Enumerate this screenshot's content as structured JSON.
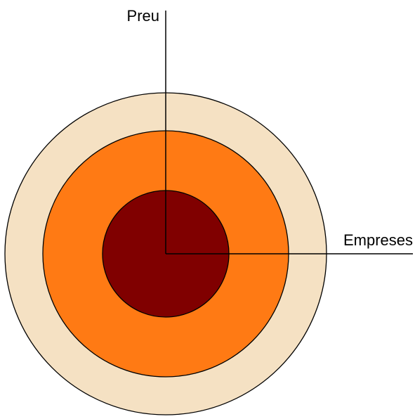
{
  "axes": {
    "vertical": {
      "label": "Preu"
    },
    "horizontal": {
      "label": "Empreses"
    }
  }
}
